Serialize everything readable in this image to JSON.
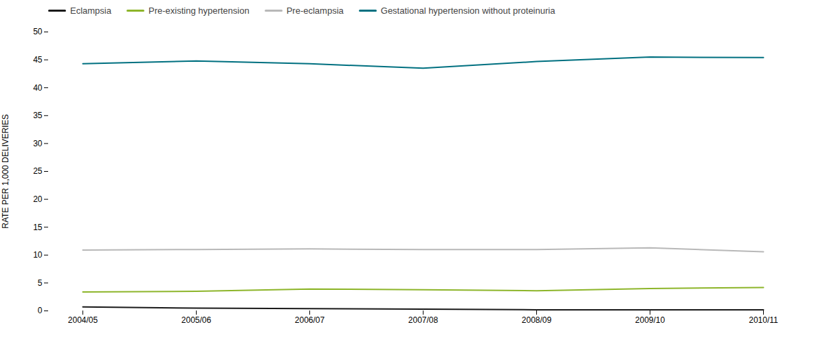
{
  "chart_data": {
    "type": "line",
    "ylabel": "RATE PER 1,000 DELIVERIES",
    "categories": [
      "2004/05",
      "2005/06",
      "2006/07",
      "2007/08",
      "2008/09",
      "2009/10",
      "2010/11"
    ],
    "series": [
      {
        "name": "Eclampsia",
        "color": "#1a1a1a",
        "values": [
          0.7,
          0.5,
          0.4,
          0.3,
          0.2,
          0.2,
          0.2
        ]
      },
      {
        "name": "Pre-existing hypertension",
        "color": "#8db52a",
        "values": [
          3.4,
          3.5,
          3.9,
          3.8,
          3.6,
          4.0,
          4.2
        ]
      },
      {
        "name": "Pre-eclampsia",
        "color": "#b8b8b8",
        "values": [
          10.9,
          11.0,
          11.1,
          11.0,
          11.0,
          11.3,
          10.6
        ]
      },
      {
        "name": "Gestational hypertension without proteinuria",
        "color": "#007080",
        "values": [
          44.3,
          44.8,
          44.3,
          43.5,
          44.7,
          45.5,
          45.4
        ]
      }
    ],
    "ylim": [
      0,
      50
    ],
    "yticks": [
      0,
      5,
      10,
      15,
      20,
      25,
      30,
      35,
      40,
      45,
      50
    ],
    "grid": false,
    "legend": "upper left"
  }
}
